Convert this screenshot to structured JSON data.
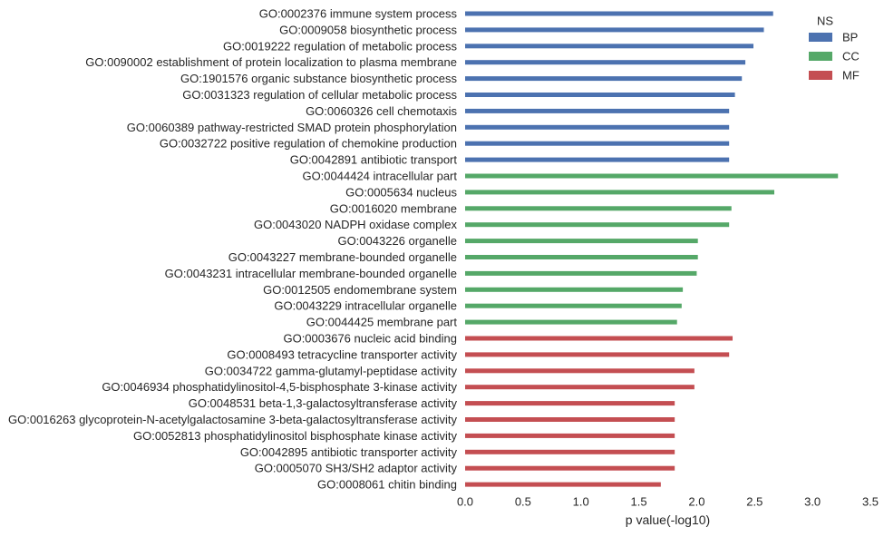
{
  "chart_data": {
    "type": "bar",
    "orientation": "horizontal",
    "title": "",
    "xlabel": "p value(-log10)",
    "ylabel": "",
    "xlim": [
      0,
      3.5
    ],
    "xticks": [
      "0.0",
      "0.5",
      "1.0",
      "1.5",
      "2.0",
      "2.5",
      "3.0",
      "3.5"
    ],
    "grid": false,
    "legend": {
      "title": "NS",
      "placement": "top-right",
      "entries": [
        {
          "name": "BP",
          "color": "#4c72b0"
        },
        {
          "name": "CC",
          "color": "#55a868"
        },
        {
          "name": "MF",
          "color": "#c44e52"
        }
      ]
    },
    "categories": [
      "GO:0002376 immune system process",
      "GO:0009058 biosynthetic process",
      "GO:0019222 regulation of metabolic process",
      "GO:0090002 establishment of protein localization to plasma membrane",
      "GO:1901576 organic substance biosynthetic process",
      "GO:0031323 regulation of cellular metabolic process",
      "GO:0060326 cell chemotaxis",
      "GO:0060389 pathway-restricted SMAD protein phosphorylation",
      "GO:0032722 positive regulation of chemokine production",
      "GO:0042891 antibiotic transport",
      "GO:0044424 intracellular part",
      "GO:0005634 nucleus",
      "GO:0016020 membrane",
      "GO:0043020 NADPH oxidase complex",
      "GO:0043226 organelle",
      "GO:0043227 membrane-bounded organelle",
      "GO:0043231 intracellular membrane-bounded organelle",
      "GO:0012505 endomembrane system",
      "GO:0043229 intracellular organelle",
      "GO:0044425 membrane part",
      "GO:0003676 nucleic acid binding",
      "GO:0008493 tetracycline transporter activity",
      "GO:0034722 gamma-glutamyl-peptidase activity",
      "GO:0046934 phosphatidylinositol-4,5-bisphosphate 3-kinase activity",
      "GO:0048531 beta-1,3-galactosyltransferase activity",
      "GO:0016263 glycoprotein-N-acetylgalactosamine 3-beta-galactosyltransferase activity",
      "GO:0052813 phosphatidylinositol bisphosphate kinase activity",
      "GO:0042895 antibiotic transporter activity",
      "GO:0005070 SH3/SH2 adaptor activity",
      "GO:0008061 chitin binding"
    ],
    "series": [
      {
        "name": "BP",
        "values": [
          2.66,
          2.58,
          2.49,
          2.42,
          2.39,
          2.33,
          2.28,
          2.28,
          2.28,
          2.28,
          null,
          null,
          null,
          null,
          null,
          null,
          null,
          null,
          null,
          null,
          null,
          null,
          null,
          null,
          null,
          null,
          null,
          null,
          null,
          null
        ]
      },
      {
        "name": "CC",
        "values": [
          null,
          null,
          null,
          null,
          null,
          null,
          null,
          null,
          null,
          null,
          3.22,
          2.67,
          2.3,
          2.28,
          2.01,
          2.01,
          2.0,
          1.88,
          1.87,
          1.83,
          null,
          null,
          null,
          null,
          null,
          null,
          null,
          null,
          null,
          null
        ]
      },
      {
        "name": "MF",
        "values": [
          null,
          null,
          null,
          null,
          null,
          null,
          null,
          null,
          null,
          null,
          null,
          null,
          null,
          null,
          null,
          null,
          null,
          null,
          null,
          null,
          2.31,
          2.28,
          1.98,
          1.98,
          1.81,
          1.81,
          1.81,
          1.81,
          1.81,
          1.69
        ]
      }
    ]
  }
}
